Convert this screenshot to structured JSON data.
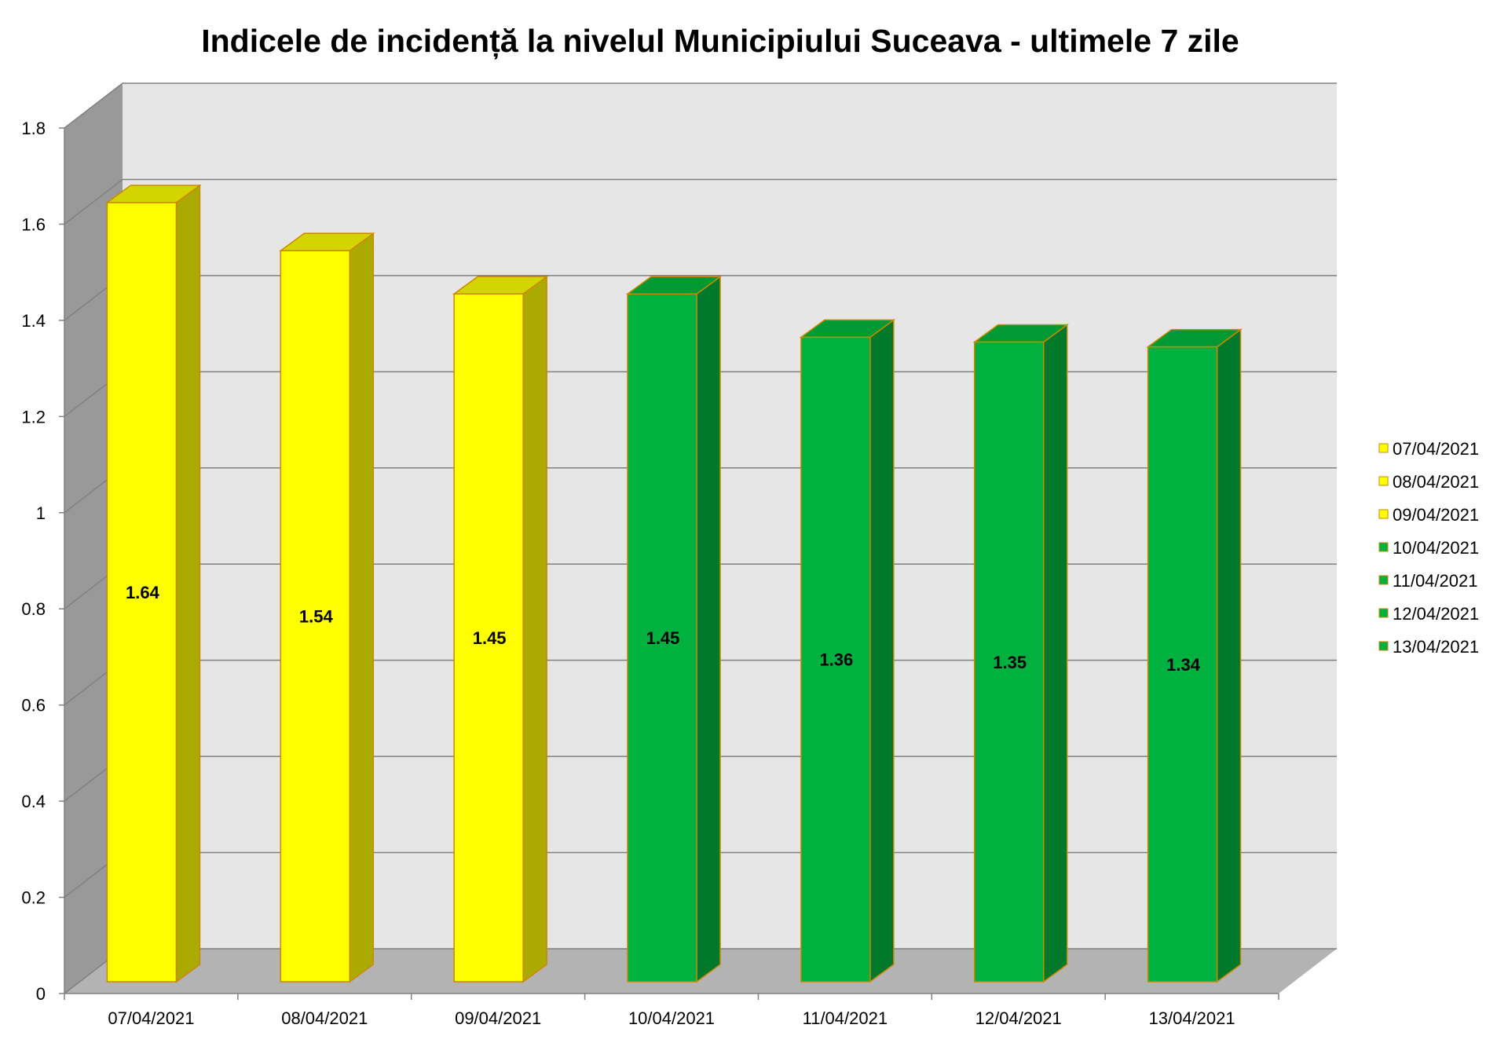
{
  "chart_data": {
    "type": "bar",
    "title": "Indicele de incidență la nivelul Municipiului Suceava - ultimele 7 zile",
    "xlabel": "",
    "ylabel": "",
    "ylim": [
      0,
      1.8
    ],
    "yticks": [
      "0",
      "0.2",
      "0.4",
      "0.6",
      "0.8",
      "1",
      "1.2",
      "1.4",
      "1.6",
      "1.8"
    ],
    "ytick_values": [
      0,
      0.2,
      0.4,
      0.6,
      0.8,
      1,
      1.2,
      1.4,
      1.6,
      1.8
    ],
    "categories": [
      "07/04/2021",
      "08/04/2021",
      "09/04/2021",
      "10/04/2021",
      "11/04/2021",
      "12/04/2021",
      "13/04/2021"
    ],
    "values": [
      1.64,
      1.54,
      1.45,
      1.45,
      1.36,
      1.35,
      1.34
    ],
    "value_labels": [
      "1.64",
      "1.54",
      "1.45",
      "1.45",
      "1.36",
      "1.35",
      "1.34"
    ],
    "bar_colors": [
      "#ffff00",
      "#ffff00",
      "#ffff00",
      "#00b140",
      "#00b140",
      "#00b140",
      "#00b140"
    ],
    "bar_side_colors": [
      "#aaaa00",
      "#aaaa00",
      "#aaaa00",
      "#007a2a",
      "#007a2a",
      "#007a2a",
      "#007a2a"
    ],
    "bar_top_colors": [
      "#d4d400",
      "#d4d400",
      "#d4d400",
      "#009933",
      "#009933",
      "#009933",
      "#009933"
    ],
    "legend": {
      "position": "right",
      "entries": [
        "07/04/2021",
        "08/04/2021",
        "09/04/2021",
        "10/04/2021",
        "11/04/2021",
        "12/04/2021",
        "13/04/2021"
      ]
    },
    "grid": true,
    "style": "3d-column",
    "colors": {
      "plot_back": "#e6e6e6",
      "plot_side": "#999999",
      "plot_floor": "#b3b3b3",
      "grid": "#808080",
      "bar_border": "#cc8800"
    }
  }
}
